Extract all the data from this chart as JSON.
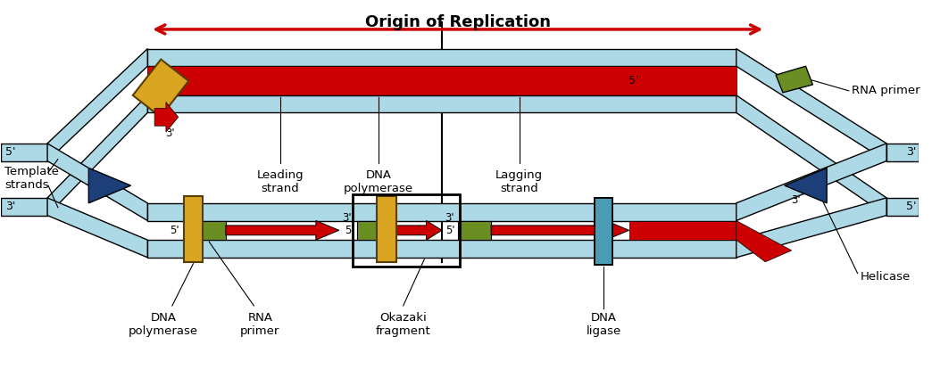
{
  "bg_color": "#ffffff",
  "colors": {
    "dna_blue": "#ADD8E6",
    "dna_blue_edge": "#5B9BB5",
    "red": "#CC0000",
    "green": "#6B8E23",
    "yellow": "#DAA520",
    "yellow_dark": "#8B6400",
    "blue_dark": "#1C3F7A",
    "ligase_blue": "#4A9CB5",
    "black": "#000000",
    "white": "#ffffff"
  },
  "labels": {
    "origin": "Origin of Replication",
    "template_strands": "Template\nstrands",
    "leading_strand": "Leading\nstrand",
    "dna_poly_top": "DNA\npolymerase",
    "lagging_strand": "Lagging\nstrand",
    "rna_primer_top": "RNA primer",
    "dna_poly_bot": "DNA\npolymerase",
    "rna_primer_bot": "RNA\nprimer",
    "okazaki": "Okazaki\nfragment",
    "dna_ligase": "DNA\nligase",
    "helicase": "Helicase"
  }
}
